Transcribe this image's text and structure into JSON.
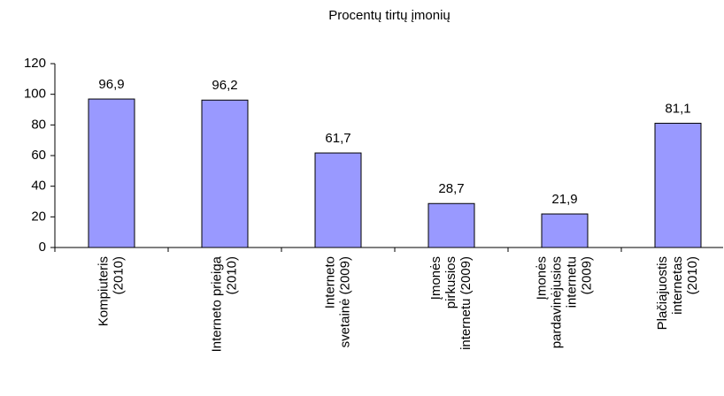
{
  "chart_data": {
    "type": "bar",
    "title": "Procentų tirtų įmonių",
    "categories": [
      [
        "Kompiuteris",
        "(2010)"
      ],
      [
        "Interneto prieiga",
        "(2010)"
      ],
      [
        "Interneto",
        "svetainė (2009)"
      ],
      [
        "Įmonės",
        "pirkusios",
        "internetu (2009)"
      ],
      [
        "Įmonės",
        "pardavinėjusios",
        "internetu",
        "(2009)"
      ],
      [
        "Plačiajuostis",
        "internetas",
        "(2010)"
      ]
    ],
    "values": [
      96.9,
      96.2,
      61.7,
      28.7,
      21.9,
      81.1
    ],
    "value_labels": [
      "96,9",
      "96,2",
      "61,7",
      "28,7",
      "21,9",
      "81,1"
    ],
    "color": "#9999ff",
    "ylim": [
      0,
      120
    ],
    "yticks": [
      0,
      20,
      40,
      60,
      80,
      100,
      120
    ],
    "grid": false
  }
}
